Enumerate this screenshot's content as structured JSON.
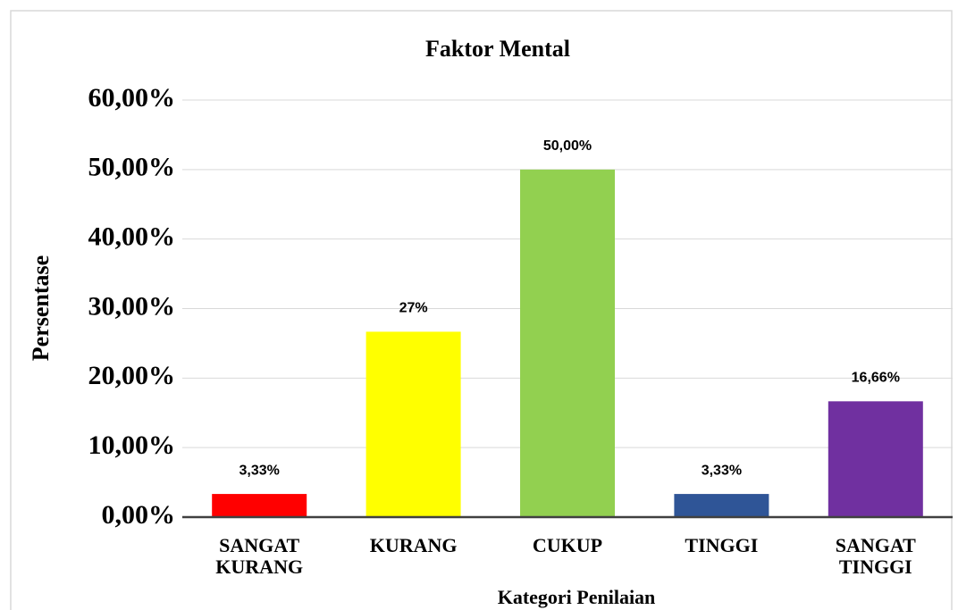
{
  "chart_data": {
    "type": "bar",
    "title": "Faktor Mental",
    "x_label": "Kategori Penilaian",
    "y_label": "Persentase",
    "categories": [
      "SANGAT KURANG",
      "KURANG",
      "CUKUP",
      "TINGGI",
      "SANGAT TINGGI"
    ],
    "values": [
      3.33,
      26.67,
      50,
      3.33,
      16.66
    ],
    "value_labels": [
      "3,33%",
      "27%",
      "50,00%",
      "3,33%",
      "16,66%"
    ],
    "colors": [
      "#ff0000",
      "#ffff00",
      "#92d050",
      "#2f5597",
      "#7030a0"
    ],
    "ylim": [
      0,
      60
    ],
    "yticks": [
      {
        "value": 0,
        "label": "0,00%"
      },
      {
        "value": 10,
        "label": "10,00%"
      },
      {
        "value": 20,
        "label": "20,00%"
      },
      {
        "value": 30,
        "label": "30,00%"
      },
      {
        "value": 40,
        "label": "40,00%"
      },
      {
        "value": 50,
        "label": "50,00%"
      },
      {
        "value": 60,
        "label": "60,00%"
      }
    ],
    "grid": true
  }
}
